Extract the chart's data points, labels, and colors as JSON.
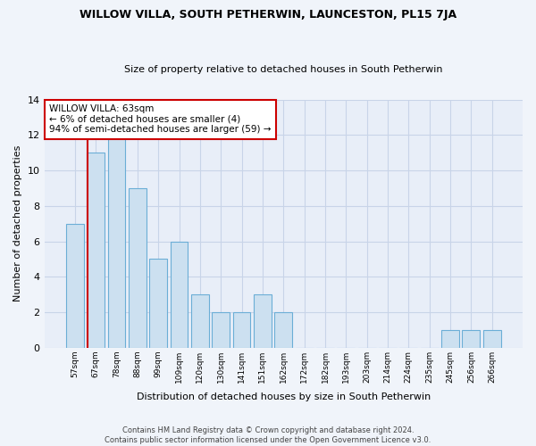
{
  "title1": "WILLOW VILLA, SOUTH PETHERWIN, LAUNCESTON, PL15 7JA",
  "title2": "Size of property relative to detached houses in South Petherwin",
  "xlabel": "Distribution of detached houses by size in South Petherwin",
  "ylabel": "Number of detached properties",
  "categories": [
    "57sqm",
    "67sqm",
    "78sqm",
    "88sqm",
    "99sqm",
    "109sqm",
    "120sqm",
    "130sqm",
    "141sqm",
    "151sqm",
    "162sqm",
    "172sqm",
    "182sqm",
    "193sqm",
    "203sqm",
    "214sqm",
    "224sqm",
    "235sqm",
    "245sqm",
    "256sqm",
    "266sqm"
  ],
  "values": [
    7,
    11,
    12,
    9,
    5,
    6,
    3,
    2,
    2,
    3,
    2,
    0,
    0,
    0,
    0,
    0,
    0,
    0,
    1,
    1,
    1
  ],
  "bar_color": "#cce0f0",
  "bar_edge_color": "#6baed6",
  "annotation_box_text": "WILLOW VILLA: 63sqm\n← 6% of detached houses are smaller (4)\n94% of semi-detached houses are larger (59) →",
  "annotation_box_color": "#ffffff",
  "annotation_box_edge_color": "#cc0000",
  "vline_color": "#cc0000",
  "ylim": [
    0,
    14
  ],
  "yticks": [
    0,
    2,
    4,
    6,
    8,
    10,
    12,
    14
  ],
  "grid_color": "#c8d4e8",
  "bg_color": "#e8eef8",
  "fig_bg_color": "#f0f4fa",
  "footnote": "Contains HM Land Registry data © Crown copyright and database right 2024.\nContains public sector information licensed under the Open Government Licence v3.0."
}
